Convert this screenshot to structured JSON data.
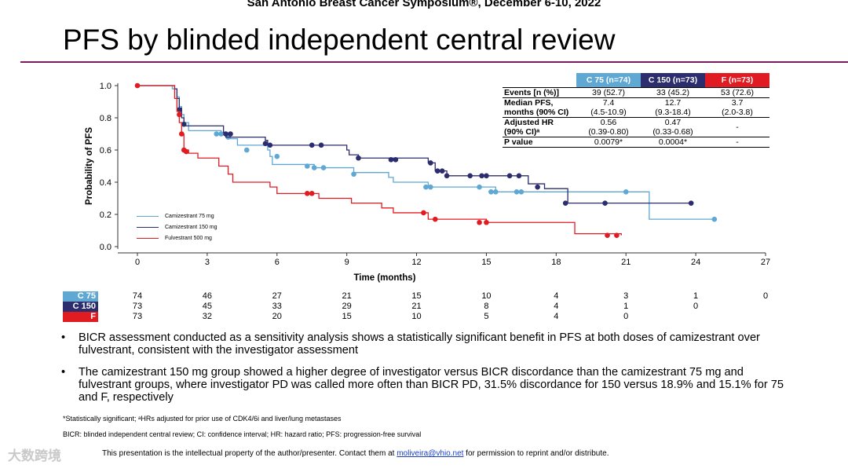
{
  "header": {
    "conference": "San Antonio Breast Cancer Symposium®, December 6-10, 2022",
    "title": "PFS by blinded independent central review"
  },
  "colors": {
    "c75": "#5ea8d3",
    "c150": "#2b2d6e",
    "f": "#e11b22",
    "rule": "#7b1a5c"
  },
  "chart_data": {
    "type": "line",
    "title": "",
    "xlabel": "Time (months)",
    "ylabel": "Probability of PFS",
    "xlim": [
      0,
      27
    ],
    "ylim": [
      0,
      1.0
    ],
    "xticks": [
      0,
      3,
      6,
      9,
      12,
      15,
      18,
      21,
      24,
      27
    ],
    "yticks": [
      0.0,
      0.2,
      0.4,
      0.6,
      0.8,
      1.0
    ],
    "legend": [
      "Camizestrant 75 mg",
      "Camizestrant 150 mg",
      "Fulvestrant 500 mg"
    ],
    "series": [
      {
        "name": "Camizestrant 75 mg",
        "color": "#5ea8d3",
        "steps": [
          [
            0,
            1.0
          ],
          [
            1.5,
            0.98
          ],
          [
            1.7,
            0.93
          ],
          [
            1.8,
            0.87
          ],
          [
            1.9,
            0.82
          ],
          [
            2.0,
            0.77
          ],
          [
            2.2,
            0.72
          ],
          [
            3.6,
            0.7
          ],
          [
            4.0,
            0.67
          ],
          [
            4.3,
            0.63
          ],
          [
            5.6,
            0.6
          ],
          [
            5.7,
            0.56
          ],
          [
            5.8,
            0.51
          ],
          [
            7.6,
            0.49
          ],
          [
            9.3,
            0.46
          ],
          [
            10.8,
            0.43
          ],
          [
            11.0,
            0.4
          ],
          [
            12.5,
            0.37
          ],
          [
            15.4,
            0.34
          ],
          [
            22.0,
            0.17
          ],
          [
            24.8,
            0.17
          ]
        ],
        "censored": [
          [
            3.4,
            0.7
          ],
          [
            3.6,
            0.7
          ],
          [
            3.9,
            0.68
          ],
          [
            4.7,
            0.6
          ],
          [
            6.0,
            0.56
          ],
          [
            7.3,
            0.5
          ],
          [
            7.6,
            0.49
          ],
          [
            8.0,
            0.49
          ],
          [
            9.3,
            0.45
          ],
          [
            12.4,
            0.37
          ],
          [
            12.6,
            0.37
          ],
          [
            14.7,
            0.37
          ],
          [
            15.2,
            0.34
          ],
          [
            15.4,
            0.34
          ],
          [
            16.3,
            0.34
          ],
          [
            16.5,
            0.34
          ],
          [
            21.0,
            0.34
          ],
          [
            24.8,
            0.17
          ]
        ]
      },
      {
        "name": "Camizestrant 150 mg",
        "color": "#2b2d6e",
        "steps": [
          [
            0,
            1.0
          ],
          [
            1.6,
            0.98
          ],
          [
            1.7,
            0.92
          ],
          [
            1.8,
            0.86
          ],
          [
            1.9,
            0.8
          ],
          [
            2.0,
            0.75
          ],
          [
            3.7,
            0.71
          ],
          [
            3.8,
            0.68
          ],
          [
            5.5,
            0.66
          ],
          [
            5.6,
            0.63
          ],
          [
            9.0,
            0.6
          ],
          [
            9.1,
            0.57
          ],
          [
            9.5,
            0.55
          ],
          [
            12.5,
            0.52
          ],
          [
            12.8,
            0.47
          ],
          [
            13.3,
            0.44
          ],
          [
            16.8,
            0.39
          ],
          [
            17.5,
            0.36
          ],
          [
            18.5,
            0.27
          ],
          [
            23.9,
            0.27
          ]
        ],
        "censored": [
          [
            1.8,
            0.85
          ],
          [
            2.0,
            0.76
          ],
          [
            3.8,
            0.7
          ],
          [
            4.0,
            0.7
          ],
          [
            5.5,
            0.64
          ],
          [
            5.7,
            0.63
          ],
          [
            7.5,
            0.63
          ],
          [
            7.9,
            0.63
          ],
          [
            9.5,
            0.55
          ],
          [
            10.9,
            0.54
          ],
          [
            11.1,
            0.54
          ],
          [
            12.6,
            0.52
          ],
          [
            12.9,
            0.47
          ],
          [
            13.1,
            0.47
          ],
          [
            13.3,
            0.44
          ],
          [
            14.3,
            0.44
          ],
          [
            14.8,
            0.44
          ],
          [
            15.0,
            0.44
          ],
          [
            16.0,
            0.44
          ],
          [
            16.4,
            0.44
          ],
          [
            17.2,
            0.37
          ],
          [
            18.4,
            0.27
          ],
          [
            20.1,
            0.27
          ],
          [
            23.8,
            0.27
          ]
        ]
      },
      {
        "name": "Fulvestrant 500 mg",
        "color": "#e11b22",
        "steps": [
          [
            0,
            1.0
          ],
          [
            1.6,
            0.92
          ],
          [
            1.7,
            0.84
          ],
          [
            1.8,
            0.77
          ],
          [
            1.9,
            0.7
          ],
          [
            2.0,
            0.6
          ],
          [
            2.2,
            0.58
          ],
          [
            2.6,
            0.55
          ],
          [
            3.5,
            0.5
          ],
          [
            3.9,
            0.45
          ],
          [
            4.1,
            0.4
          ],
          [
            5.7,
            0.37
          ],
          [
            6.0,
            0.33
          ],
          [
            7.8,
            0.3
          ],
          [
            9.2,
            0.27
          ],
          [
            10.5,
            0.24
          ],
          [
            11.0,
            0.21
          ],
          [
            12.5,
            0.17
          ],
          [
            15.0,
            0.15
          ],
          [
            18.8,
            0.08
          ],
          [
            20.8,
            0.07
          ]
        ],
        "censored": [
          [
            0.0,
            1.0
          ],
          [
            1.8,
            0.82
          ],
          [
            1.9,
            0.7
          ],
          [
            2.0,
            0.6
          ],
          [
            2.1,
            0.59
          ],
          [
            7.3,
            0.33
          ],
          [
            7.5,
            0.33
          ],
          [
            12.3,
            0.21
          ],
          [
            12.8,
            0.17
          ],
          [
            14.7,
            0.15
          ],
          [
            15.0,
            0.15
          ],
          [
            20.2,
            0.07
          ],
          [
            20.6,
            0.07
          ]
        ]
      }
    ]
  },
  "stats_table": {
    "headers": [
      "C 75 (n=74)",
      "C 150 (n=73)",
      "F (n=73)"
    ],
    "rows": [
      {
        "label": "Events [n (%)]",
        "label2": "",
        "values": [
          "39 (52.7)",
          "33 (45.2)",
          "53 (72.6)"
        ],
        "values2": [
          "",
          "",
          ""
        ]
      },
      {
        "label": "Median PFS,",
        "label2": "months (90% CI)",
        "values": [
          "7.4",
          "12.7",
          "3.7"
        ],
        "values2": [
          "(4.5-10.9)",
          "(9.3-18.4)",
          "(2.0-3.8)"
        ]
      },
      {
        "label": "Adjusted HR",
        "label2": "(90% CI)ᵃ",
        "values": [
          "0.56",
          "0.47",
          ""
        ],
        "values2": [
          "(0.39-0.80)",
          "(0.33-0.68)",
          ""
        ],
        "mid3": "-"
      },
      {
        "label": "P value",
        "label2": "",
        "values": [
          "0.0079*",
          "0.0004*",
          "-"
        ],
        "values2": [
          "",
          "",
          ""
        ]
      }
    ]
  },
  "risk_table": {
    "rows": [
      {
        "label": "C 75",
        "counts": [
          "74",
          "46",
          "27",
          "21",
          "15",
          "10",
          "4",
          "3",
          "1",
          "0"
        ]
      },
      {
        "label": "C 150",
        "counts": [
          "73",
          "45",
          "33",
          "29",
          "21",
          "8",
          "4",
          "1",
          "0"
        ]
      },
      {
        "label": "F",
        "counts": [
          "73",
          "32",
          "20",
          "15",
          "10",
          "5",
          "4",
          "0"
        ]
      }
    ]
  },
  "bullets": [
    "BICR assessment conducted as a sensitivity analysis shows a statistically significant benefit in PFS at both doses of camizestrant over fulvestrant, consistent with the investigator assessment",
    "The camizestrant 150 mg group showed a higher degree of investigator versus BICR discordance than the camizestrant 75 mg and fulvestrant groups, where investigator PD was called more often than BICR PD, 31.5% discordance for 150 versus 18.9% and 15.1% for 75 and F, respectively"
  ],
  "footnotes": {
    "sig": "*Statistically significant; ᵃHRs adjusted for prior use of CDK4/6i and liver/lung metastases",
    "abbrev": "BICR: blinded independent central review; CI: confidence interval; HR: hazard ratio; PFS: progression-free survival",
    "ip_pre": "This presentation is the intellectual property of the author/presenter. Contact them at ",
    "ip_link": "moliveira@vhio.net",
    "ip_post": " for permission to reprint and/or distribute."
  },
  "watermark": "大数跨境"
}
